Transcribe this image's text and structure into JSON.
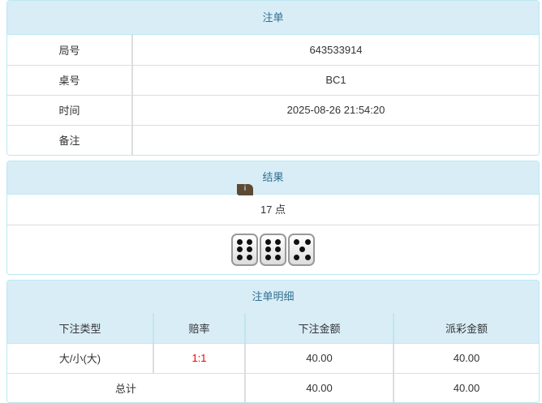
{
  "order": {
    "title": "注单",
    "rows": [
      {
        "label": "局号",
        "value": "643533914"
      },
      {
        "label": "桌号",
        "value": "BC1"
      },
      {
        "label": "时间",
        "value": "2025-08-26 21:54:20"
      },
      {
        "label": "备注",
        "value": ""
      }
    ]
  },
  "result": {
    "title": "结果",
    "points": "17 点",
    "dice": [
      6,
      6,
      5
    ],
    "info_badge": "i"
  },
  "detail": {
    "title": "注单明细",
    "headers": [
      "下注类型",
      "赔率",
      "下注金额",
      "派彩金额"
    ],
    "row": {
      "type": "大/小(大)",
      "odds": "1:1",
      "bet": "40.00",
      "payout": "40.00"
    },
    "total": {
      "label": "总计",
      "bet": "40.00",
      "payout": "40.00"
    },
    "odds_color": "#ee0000"
  }
}
